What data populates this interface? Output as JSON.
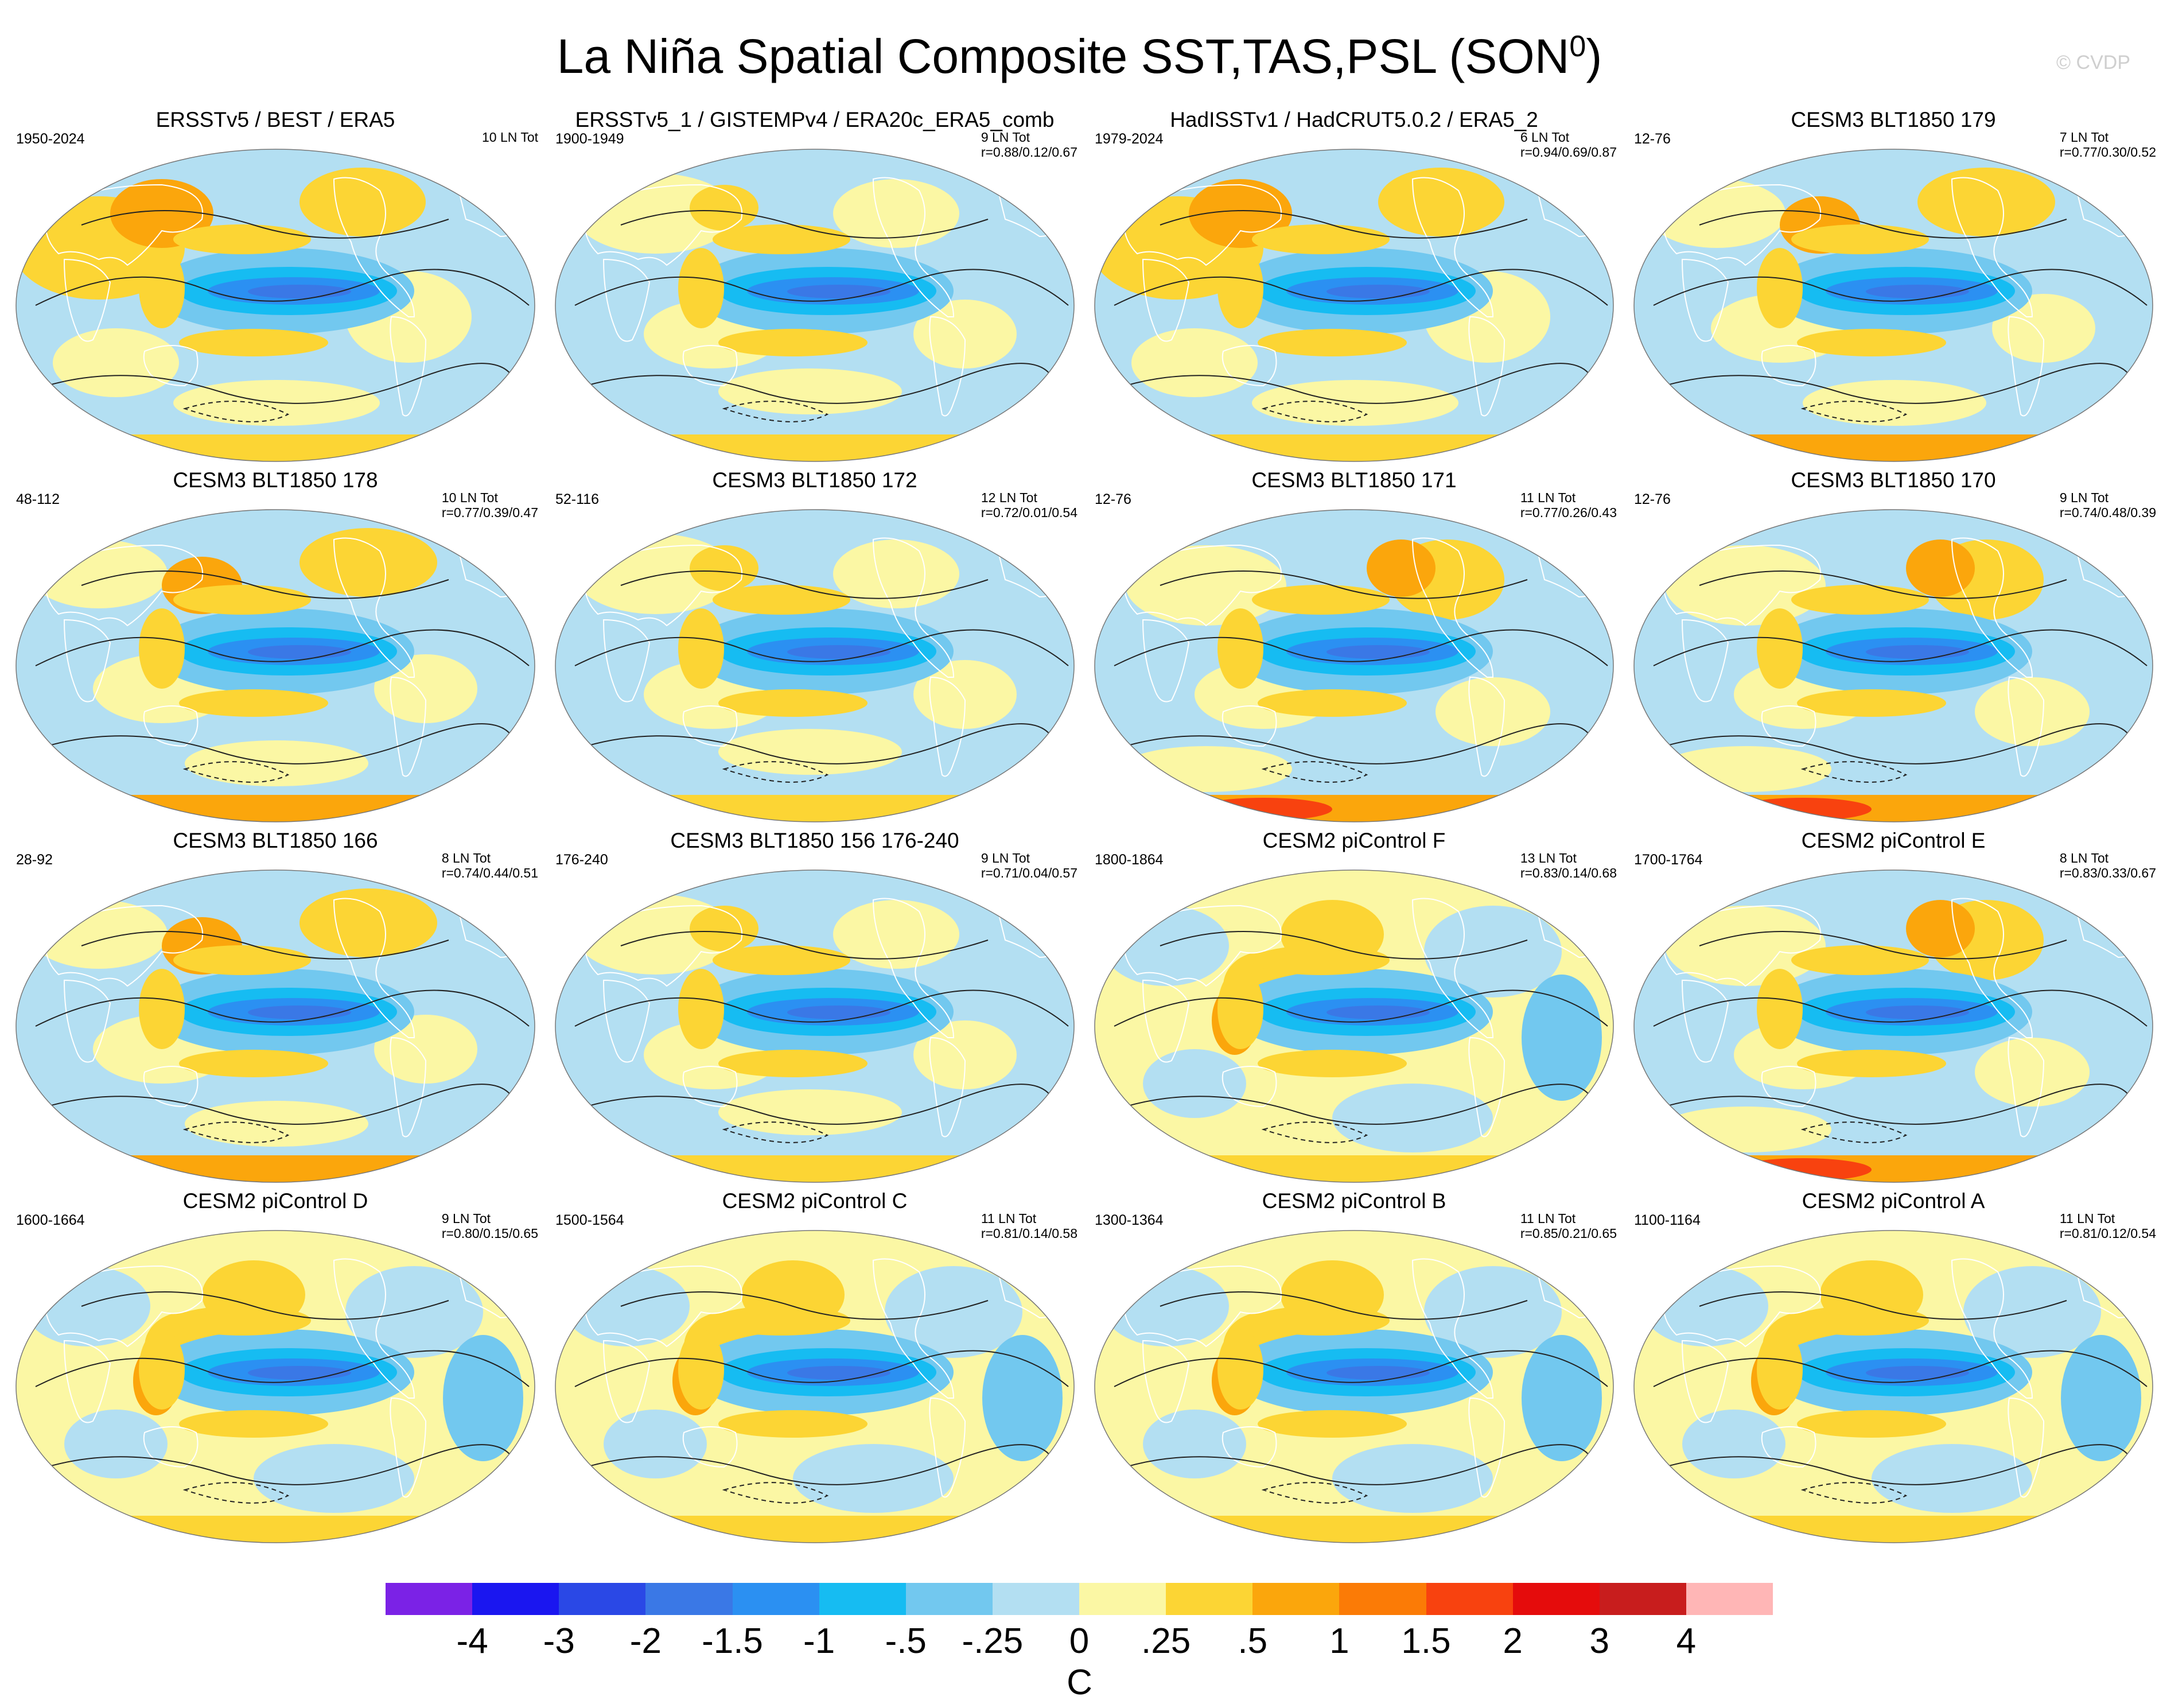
{
  "title": "La Niña Spatial Composite SST,TAS,PSL (SON",
  "title_superscript": "0",
  "title_close": ")",
  "copyright": "© CVDP",
  "panels": [
    {
      "title": "ERSSTv5 / BEST / ERA5",
      "years": "1950-2024",
      "count": "10 LN Tot",
      "stats": "",
      "style": 0
    },
    {
      "title": "ERSSTv5_1 / GISTEMPv4 / ERA20c_ERA5_comb",
      "years": "1900-1949",
      "count": "9 LN Tot",
      "stats": "r=0.88/0.12/0.67",
      "style": 1
    },
    {
      "title": "HadISSTv1 / HadCRUT5.0.2 / ERA5_2",
      "years": "1979-2024",
      "count": "6 LN Tot",
      "stats": "r=0.94/0.69/0.87",
      "style": 0
    },
    {
      "title": "CESM3 BLT1850 179",
      "years": "12-76",
      "count": "7 LN Tot",
      "stats": "r=0.77/0.30/0.52",
      "style": 2
    },
    {
      "title": "CESM3 BLT1850 178",
      "years": "48-112",
      "count": "10 LN Tot",
      "stats": "r=0.77/0.39/0.47",
      "style": 2
    },
    {
      "title": "CESM3 BLT1850 172",
      "years": "52-116",
      "count": "12 LN Tot",
      "stats": "r=0.72/0.01/0.54",
      "style": 1
    },
    {
      "title": "CESM3 BLT1850 171",
      "years": "12-76",
      "count": "11 LN Tot",
      "stats": "r=0.77/0.26/0.43",
      "style": 3
    },
    {
      "title": "CESM3 BLT1850 170",
      "years": "12-76",
      "count": "9 LN Tot",
      "stats": "r=0.74/0.48/0.39",
      "style": 3
    },
    {
      "title": "CESM3 BLT1850 166",
      "years": "28-92",
      "count": "8 LN Tot",
      "stats": "r=0.74/0.44/0.51",
      "style": 2
    },
    {
      "title": "CESM3 BLT1850 156 176-240",
      "years": "176-240",
      "count": "9 LN Tot",
      "stats": "r=0.71/0.04/0.57",
      "style": 1
    },
    {
      "title": "CESM2 piControl F",
      "years": "1800-1864",
      "count": "13 LN Tot",
      "stats": "r=0.83/0.14/0.68",
      "style": 4
    },
    {
      "title": "CESM2 piControl E",
      "years": "1700-1764",
      "count": "8 LN Tot",
      "stats": "r=0.83/0.33/0.67",
      "style": 3
    },
    {
      "title": "CESM2 piControl D",
      "years": "1600-1664",
      "count": "9 LN Tot",
      "stats": "r=0.80/0.15/0.65",
      "style": 4
    },
    {
      "title": "CESM2 piControl C",
      "years": "1500-1564",
      "count": "11 LN Tot",
      "stats": "r=0.81/0.14/0.58",
      "style": 4
    },
    {
      "title": "CESM2 piControl B",
      "years": "1300-1364",
      "count": "11 LN Tot",
      "stats": "r=0.85/0.21/0.65",
      "style": 4
    },
    {
      "title": "CESM2 piControl A",
      "years": "1100-1164",
      "count": "11 LN Tot",
      "stats": "r=0.81/0.12/0.54",
      "style": 4
    }
  ],
  "colorbar": {
    "colors": [
      "#7b22e6",
      "#1a16f0",
      "#2a48e6",
      "#3a78e6",
      "#2b90f2",
      "#16bcf2",
      "#72c8ef",
      "#b3dff2",
      "#fbf7a4",
      "#fcd534",
      "#fba60c",
      "#fb7b06",
      "#f8420f",
      "#e50c0c",
      "#c81d1d",
      "#ffb6b6"
    ],
    "ticks": [
      "-4",
      "-3",
      "-2",
      "-1.5",
      "-1",
      "-.5",
      "-.25",
      "0",
      ".25",
      ".5",
      "1",
      "1.5",
      "2",
      "3",
      "4"
    ],
    "units": "C"
  }
}
